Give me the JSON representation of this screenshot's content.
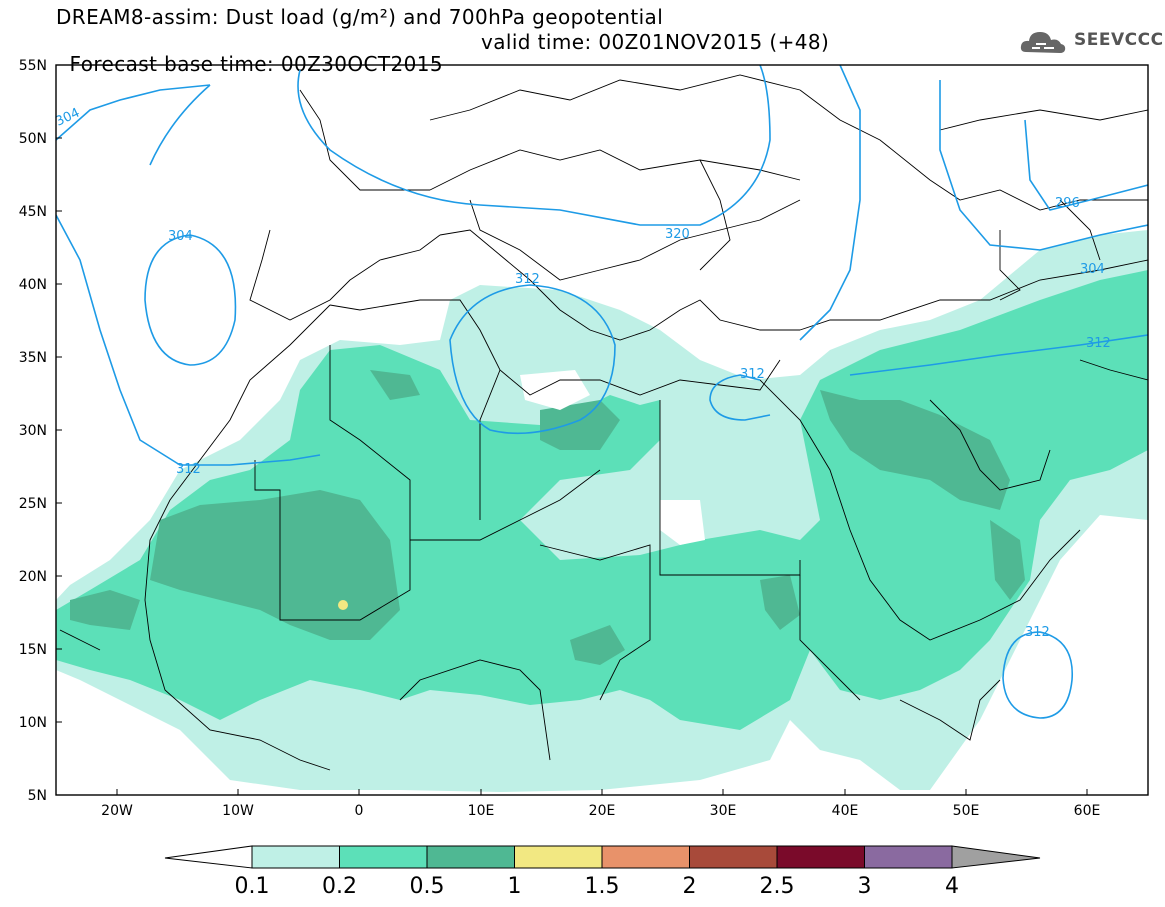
{
  "header": {
    "title_line1": "DREAM8-assim: Dust load (g/m²) and 700hPa geopotential",
    "title_line2_left": "Forecast base time: 00Z30OCT2015",
    "title_line2_right": "valid time: 00Z01NOV2015 (+48)",
    "logo_text": "SEEVCCC"
  },
  "map": {
    "lat_labels": [
      "55N",
      "50N",
      "45N",
      "40N",
      "35N",
      "30N",
      "25N",
      "20N",
      "15N",
      "10N",
      "5N"
    ],
    "lon_labels": [
      "20W",
      "10W",
      "0",
      "10E",
      "20E",
      "30E",
      "40E",
      "50E",
      "60E"
    ],
    "contour_labels": [
      "304",
      "304",
      "312",
      "320",
      "312",
      "312",
      "312",
      "296",
      "304",
      "312"
    ],
    "colors": {
      "dust_0_1": "#bff0e6",
      "dust_0_2": "#5ce0b8",
      "dust_0_5": "#4fb893",
      "dust_1": "#f2e882",
      "contour": "#1e9be6",
      "border": "#000000"
    }
  },
  "colorbar": {
    "ticks": [
      "0.1",
      "0.2",
      "0.5",
      "1",
      "1.5",
      "2",
      "2.5",
      "3",
      "4"
    ],
    "colors": [
      "#ffffff",
      "#bff0e6",
      "#5ce0b8",
      "#4fb893",
      "#f2e882",
      "#e8926a",
      "#a84a3a",
      "#7a0a2a",
      "#8a6aa0",
      "#a0a0a0"
    ]
  }
}
